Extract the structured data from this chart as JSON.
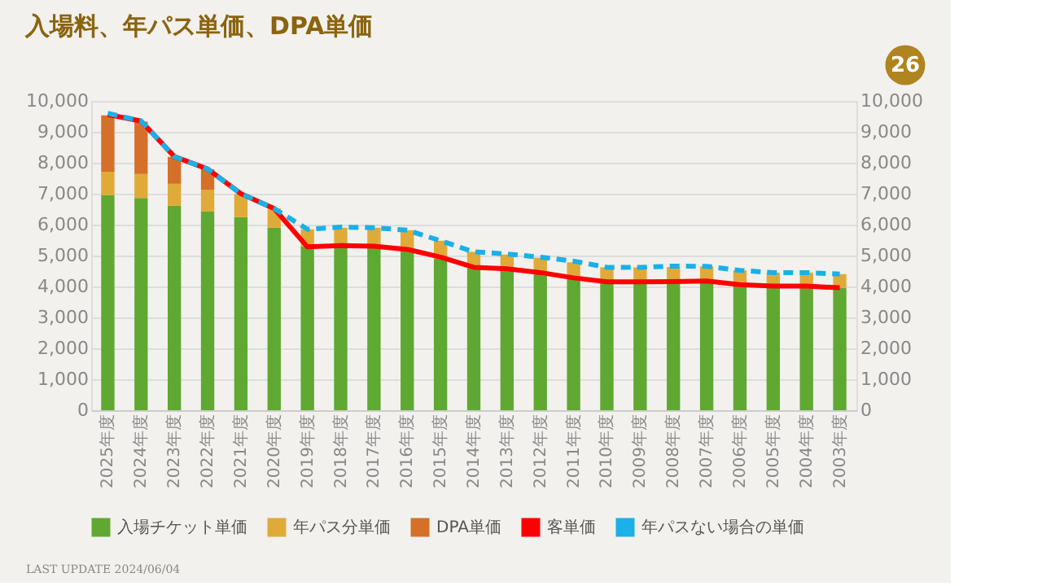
{
  "chart_data": {
    "type": "bar",
    "title": "入場料、年パス単価、DPA単価",
    "categories": [
      "2025年度",
      "2024年度",
      "2023年度",
      "2022年度",
      "2021年度",
      "2020年度",
      "2019年度",
      "2018年度",
      "2017年度",
      "2016年度",
      "2015年度",
      "2014年度",
      "2013年度",
      "2012年度",
      "2011年度",
      "2010年度",
      "2009年度",
      "2008年度",
      "2007年度",
      "2006年度",
      "2005年度",
      "2004年度",
      "2003年度"
    ],
    "stacked": true,
    "series": [
      {
        "name": "入場チケット単価",
        "color": "#5fa832",
        "values": [
          6950,
          6860,
          6610,
          6420,
          6240,
          5900,
          5300,
          5280,
          5280,
          5180,
          4900,
          4600,
          4550,
          4420,
          4250,
          4120,
          4120,
          4130,
          4150,
          4060,
          3980,
          3980,
          3950
        ]
      },
      {
        "name": "年パス分単価",
        "color": "#e0aa38",
        "values": [
          760,
          780,
          710,
          700,
          750,
          620,
          550,
          620,
          620,
          640,
          580,
          520,
          480,
          510,
          530,
          500,
          500,
          500,
          500,
          460,
          470,
          470,
          450
        ]
      },
      {
        "name": "DPA単価",
        "color": "#d4702a",
        "values": [
          1820,
          1690,
          870,
          670,
          null,
          null,
          null,
          null,
          null,
          null,
          null,
          null,
          null,
          null,
          null,
          null,
          null,
          null,
          null,
          null,
          null,
          null,
          null
        ]
      },
      {
        "name": "客単価",
        "type": "line",
        "color": "#ff0000",
        "line_style": "solid",
        "values": [
          9560,
          9350,
          8200,
          7800,
          7000,
          6520,
          5280,
          5320,
          5300,
          5200,
          4950,
          4620,
          4570,
          4450,
          4280,
          4150,
          4150,
          4160,
          4180,
          4060,
          4010,
          4010,
          3960
        ]
      },
      {
        "name": "年パスない場合の単価",
        "type": "line",
        "color": "#1ab0e8",
        "line_style": "dashed",
        "values": [
          9600,
          9350,
          8200,
          7800,
          7000,
          6520,
          5850,
          5920,
          5900,
          5820,
          5480,
          5120,
          5050,
          4950,
          4820,
          4620,
          4620,
          4660,
          4650,
          4520,
          4450,
          4450,
          4400
        ]
      }
    ],
    "ylim": [
      0,
      10000
    ],
    "yticks": [
      {
        "value": 0,
        "label": "0"
      },
      {
        "value": 1000,
        "label": "1,000"
      },
      {
        "value": 2000,
        "label": "2,000"
      },
      {
        "value": 3000,
        "label": "3,000"
      },
      {
        "value": 4000,
        "label": "4,000"
      },
      {
        "value": 5000,
        "label": "5,000"
      },
      {
        "value": 6000,
        "label": "6,000"
      },
      {
        "value": 7000,
        "label": "7,000"
      },
      {
        "value": 8000,
        "label": "8,000"
      },
      {
        "value": 9000,
        "label": "9,000"
      },
      {
        "value": 10000,
        "label": "10,000"
      }
    ],
    "y2lim": [
      0,
      10000
    ],
    "y2ticks": [
      {
        "value": 0,
        "label": "0"
      },
      {
        "value": 1000,
        "label": "1,000"
      },
      {
        "value": 2000,
        "label": "2,000"
      },
      {
        "value": 3000,
        "label": "3,000"
      },
      {
        "value": 4000,
        "label": "4,000"
      },
      {
        "value": 5000,
        "label": "5,000"
      },
      {
        "value": 6000,
        "label": "6,000"
      },
      {
        "value": 7000,
        "label": "7,000"
      },
      {
        "value": 8000,
        "label": "8,000"
      },
      {
        "value": 9000,
        "label": "9,000"
      },
      {
        "value": 10000,
        "label": "10,000"
      }
    ],
    "grid": "y",
    "legend": "bottom",
    "marker": "none",
    "annotations": [
      "26",
      "LAST UPDATE 2024/06/04"
    ]
  }
}
